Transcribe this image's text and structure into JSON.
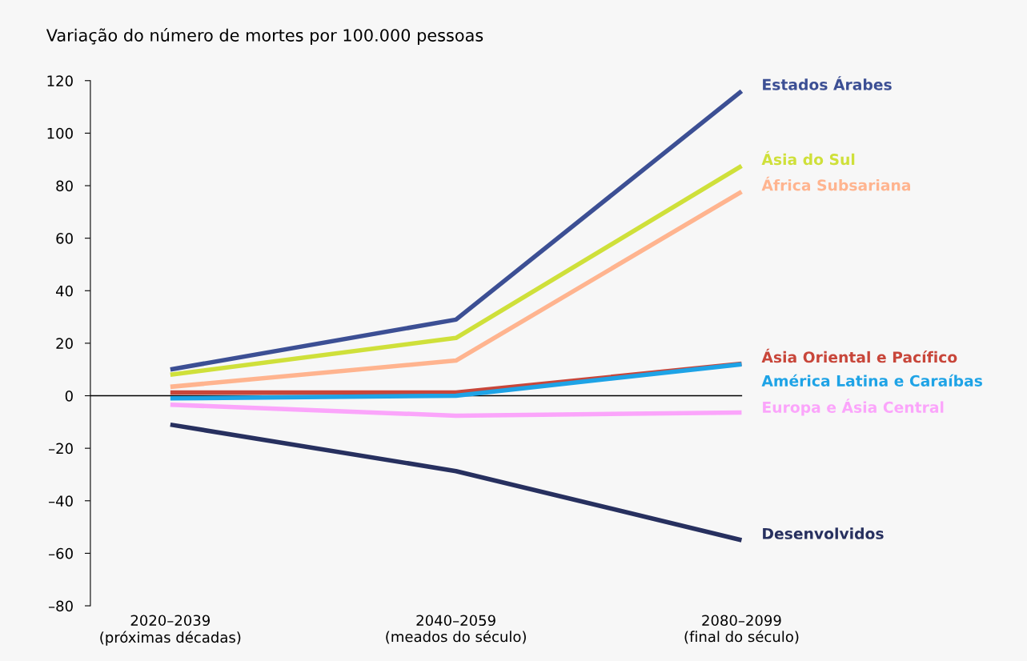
{
  "chart_data": {
    "type": "line",
    "title": "Variação do número de mortes por 100.000 pessoas",
    "categories": [
      "2020–2039\n(próximas décadas)",
      "2040–2059\n(meados do século)",
      "2080–2099\n(final do século)"
    ],
    "series": [
      {
        "name": "Estados Árabes",
        "color": "#3c4f94",
        "values": [
          10,
          29,
          116
        ]
      },
      {
        "name": "Ásia do Sul",
        "color": "#cfe03a",
        "values": [
          8,
          22,
          87.5
        ]
      },
      {
        "name": "África Subsariana",
        "color": "#ffb48f",
        "values": [
          3.4,
          13.4,
          77.7
        ]
      },
      {
        "name": "Ásia Oriental e Pacífico",
        "color": "#c8463a",
        "values": [
          1.2,
          1.2,
          12.2
        ]
      },
      {
        "name": "América Latina e Caraíbas",
        "color": "#1ea3e6",
        "values": [
          -1,
          0,
          12
        ]
      },
      {
        "name": "Europa e Ásia Central",
        "color": "#fba5fb",
        "values": [
          -3.4,
          -7.6,
          -6.4
        ]
      },
      {
        "name": "Desenvolvidos",
        "color": "#27305f",
        "values": [
          -11,
          -28.7,
          -55
        ]
      }
    ],
    "ylim": [
      -80,
      120
    ],
    "yticks": [
      {
        "value": -80,
        "label": "–80"
      },
      {
        "value": -60,
        "label": "–60"
      },
      {
        "value": -40,
        "label": "–40"
      },
      {
        "value": -20,
        "label": "–20"
      },
      0,
      20,
      40,
      60,
      80,
      100,
      120
    ],
    "ref_lines": [
      {
        "axis": "y",
        "value": 0,
        "color": "#000000"
      }
    ],
    "grid": false,
    "legend": false,
    "marker": "none",
    "line_style": "solid"
  }
}
